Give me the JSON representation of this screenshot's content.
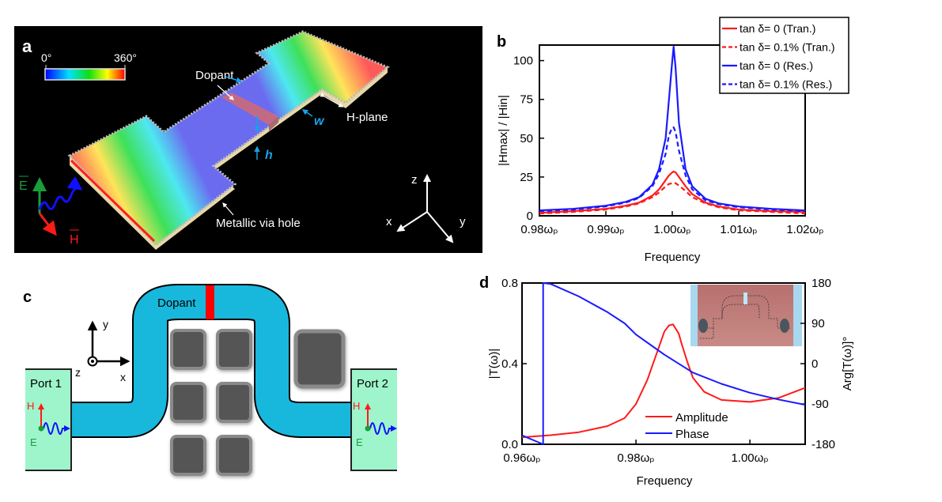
{
  "panels": {
    "a": {
      "label": "a",
      "colorbar": {
        "min_label": "0°",
        "max_label": "360°"
      },
      "dopant_label": "Dopant",
      "hplane_label": "H-plane",
      "w_label": "w",
      "h_label": "h",
      "via_label": "Metallic via hole",
      "e_label": "E",
      "h_field_label": "H",
      "axes": {
        "x": "x",
        "y": "y",
        "z": "z"
      },
      "colors": {
        "field_e": "#1a9e3a",
        "field_h": "#ff1a1a",
        "wave": "#1010ff",
        "annot": "#1aa0e6"
      }
    },
    "c": {
      "label": "c",
      "dopant_label": "Dopant",
      "port1": "Port 1",
      "port2": "Port 2",
      "h_label": "H",
      "e_label": "E",
      "axes": {
        "x": "x",
        "y": "y",
        "z": "z"
      },
      "colors": {
        "waveguide": "#18b8dc",
        "dopant": "#ff0000",
        "port": "#9ef5cc",
        "pillar": "#555555"
      }
    }
  },
  "chart_data": [
    {
      "panel": "b",
      "type": "line",
      "xlabel": "Frequency",
      "ylabel": "|Hmax| / |Hin|",
      "xlim": [
        0.98,
        1.02
      ],
      "ylim": [
        0,
        110
      ],
      "xticks": [
        0.98,
        0.99,
        1.0,
        1.01,
        1.02
      ],
      "xtick_labels": [
        "0.98ωₚ",
        "0.99ωₚ",
        "1.00ωₚ",
        "1.01ωₚ",
        "1.02ωₚ"
      ],
      "yticks": [
        0,
        25,
        50,
        75,
        100
      ],
      "ytick_labels": [
        "0",
        "25",
        "50",
        "75",
        "100"
      ],
      "legend_position": "top-right",
      "grid": false,
      "x": [
        0.98,
        0.985,
        0.99,
        0.993,
        0.995,
        0.997,
        0.998,
        0.999,
        0.9995,
        1.0,
        1.0002,
        1.0005,
        1.001,
        1.002,
        1.003,
        1.005,
        1.007,
        1.01,
        1.015,
        1.02
      ],
      "series": [
        {
          "name": "tan δ= 0 (Tran.)",
          "color": "#ff1a1a",
          "dash": false,
          "values": [
            2,
            3,
            4.5,
            6.5,
            8.5,
            13,
            17,
            23,
            26,
            28,
            28.5,
            28,
            25,
            19,
            14,
            8.5,
            6,
            4,
            3,
            2.5
          ]
        },
        {
          "name": "tan δ= 0.1% (Tran.)",
          "color": "#ff1a1a",
          "dash": true,
          "values": [
            1.5,
            2.5,
            4,
            6,
            8,
            12,
            15,
            19,
            20.5,
            21,
            21.5,
            21,
            19.5,
            16,
            12,
            8,
            5.5,
            3.5,
            2.5,
            1.5
          ]
        },
        {
          "name": "tan δ= 0 (Res.)",
          "color": "#1a1aff",
          "dash": false,
          "values": [
            3.5,
            4.5,
            6.5,
            9,
            12,
            20,
            30,
            50,
            75,
            100,
            109,
            95,
            60,
            30,
            19,
            11,
            8,
            6,
            4.5,
            3.5
          ]
        },
        {
          "name": "tan δ= 0.1% (Res.)",
          "color": "#1a1aff",
          "dash": true,
          "values": [
            3,
            4,
            6,
            8.5,
            11.5,
            19,
            27,
            40,
            52,
            57,
            57,
            54,
            42,
            26,
            17,
            10,
            7.5,
            5.5,
            4,
            3
          ]
        }
      ]
    },
    {
      "panel": "d",
      "type": "line",
      "xlabel": "Frequency",
      "ylabel": "|T(ω)|",
      "y2label": "Arg[T(ω)]°",
      "xlim": [
        0.96,
        1.0097
      ],
      "ylim": [
        0,
        0.8
      ],
      "y2lim": [
        -180,
        180
      ],
      "xticks": [
        0.96,
        0.98,
        1.0
      ],
      "xtick_labels": [
        "0.96ωₚ",
        "0.98ωₚ",
        "1.00ωₚ"
      ],
      "yticks": [
        0,
        0.4,
        0.8
      ],
      "ytick_labels": [
        "0.0",
        "0.4",
        "0.8"
      ],
      "y2ticks": [
        -180,
        -90,
        0,
        90,
        180
      ],
      "y2tick_labels": [
        "-180",
        "-90",
        "0",
        "90",
        "180"
      ],
      "legend_position": "bottom-center",
      "grid": false,
      "inset": "photo of fabricated sample",
      "series": [
        {
          "name": "Amplitude",
          "color": "#ff1a1a",
          "axis": "left",
          "x": [
            0.96,
            0.965,
            0.97,
            0.975,
            0.978,
            0.98,
            0.982,
            0.984,
            0.985,
            0.9858,
            0.9865,
            0.9875,
            0.988,
            0.989,
            0.99,
            0.992,
            0.995,
            1.0,
            1.005,
            1.0097
          ],
          "values": [
            0.035,
            0.045,
            0.06,
            0.09,
            0.13,
            0.2,
            0.32,
            0.48,
            0.56,
            0.59,
            0.595,
            0.55,
            0.5,
            0.41,
            0.33,
            0.26,
            0.22,
            0.21,
            0.23,
            0.28
          ]
        },
        {
          "name": "Phase",
          "color": "#1a1aff",
          "axis": "right",
          "x": [
            0.96,
            0.9637,
            0.9637,
            0.965,
            0.97,
            0.975,
            0.978,
            0.98,
            0.983,
            0.985,
            0.99,
            0.995,
            1.0,
            1.005,
            1.0097
          ],
          "values": [
            -160,
            -180,
            180,
            178,
            150,
            115,
            90,
            65,
            38,
            20,
            -20,
            -45,
            -65,
            -80,
            -92
          ]
        }
      ]
    }
  ]
}
